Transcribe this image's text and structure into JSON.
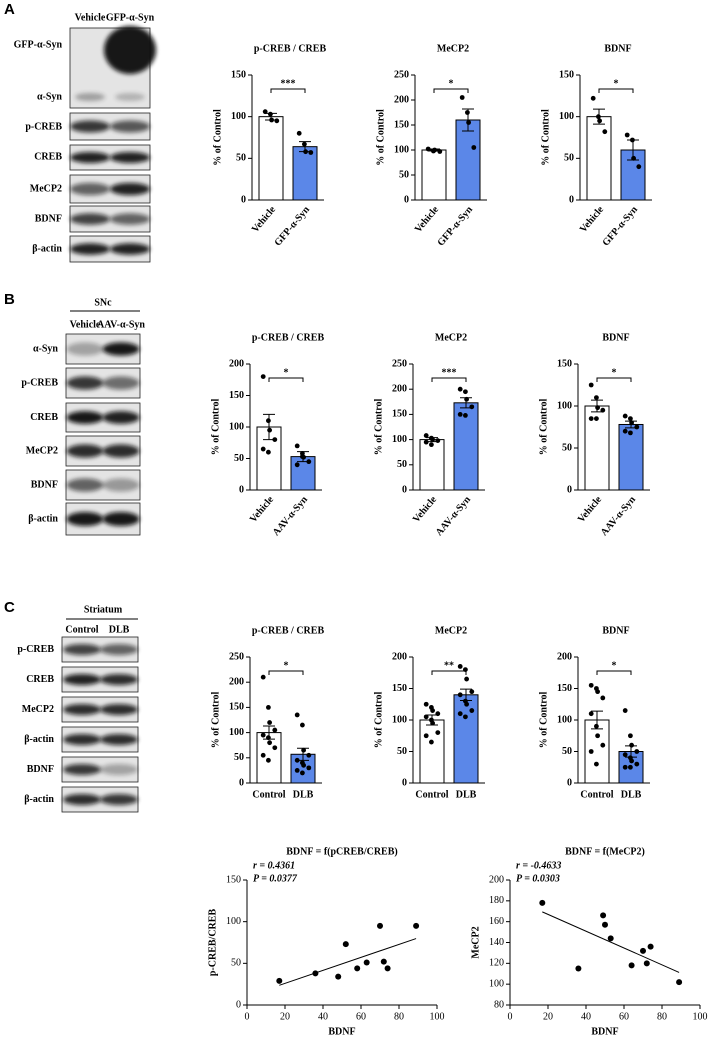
{
  "blots": [
    {
      "panel": "A",
      "columns": [
        "Vehicle",
        "GFP-α-Syn"
      ],
      "rows": [
        "GFP-α-Syn",
        "α-Syn",
        "p-CREB",
        "CREB",
        "MeCP2",
        "BDNF",
        "β-actin"
      ]
    },
    {
      "panel": "B",
      "header": "SNc",
      "columns": [
        "Vehicle",
        "AAV-α-Syn"
      ],
      "rows": [
        "α-Syn",
        "p-CREB",
        "CREB",
        "MeCP2",
        "BDNF",
        "β-actin"
      ]
    },
    {
      "panel": "C",
      "header": "Striatum",
      "columns": [
        "Control",
        "DLB"
      ],
      "rows": [
        "p-CREB",
        "CREB",
        "MeCP2",
        "β-actin",
        "BDNF",
        "β-actin"
      ]
    }
  ],
  "chart_data": [
    {
      "type": "bar",
      "title": "p-CREB / CREB",
      "ylabel": "% of Control",
      "categories": [
        "Vehicle",
        "GFP-α-Syn"
      ],
      "colors": [
        "#ffffff",
        "#5b87e8"
      ],
      "values": [
        100,
        64
      ],
      "errors": [
        4,
        6
      ],
      "points": [
        [
          106,
          103,
          96,
          95
        ],
        [
          80,
          67,
          58,
          57
        ]
      ],
      "significance": "***",
      "ylim": [
        0,
        150
      ],
      "yticks": [
        0,
        50,
        100,
        150
      ],
      "xtick_rotation": 50
    },
    {
      "type": "bar",
      "title": "MeCP2",
      "ylabel": "% of Control",
      "categories": [
        "Vehicle",
        "GFP-α-Syn"
      ],
      "colors": [
        "#ffffff",
        "#5b87e8"
      ],
      "values": [
        100,
        160
      ],
      "errors": [
        2,
        22
      ],
      "points": [
        [
          102,
          98,
          100,
          97
        ],
        [
          205,
          175,
          155,
          105
        ]
      ],
      "significance": "*",
      "ylim": [
        0,
        250
      ],
      "yticks": [
        0,
        50,
        100,
        150,
        200,
        250
      ],
      "xtick_rotation": 50
    },
    {
      "type": "bar",
      "title": "BDNF",
      "ylabel": "% of Control",
      "categories": [
        "Vehicle",
        "GFP-α-Syn"
      ],
      "colors": [
        "#ffffff",
        "#5b87e8"
      ],
      "values": [
        100,
        60
      ],
      "errors": [
        9,
        12
      ],
      "points": [
        [
          122,
          100,
          95,
          82
        ],
        [
          78,
          72,
          50,
          40
        ]
      ],
      "significance": "*",
      "ylim": [
        0,
        150
      ],
      "yticks": [
        0,
        50,
        100,
        150
      ],
      "xtick_rotation": 50
    },
    {
      "type": "bar",
      "title": "p-CREB / CREB",
      "ylabel": "% of Control",
      "categories": [
        "Vehicle",
        "AAV-α-Syn"
      ],
      "colors": [
        "#ffffff",
        "#5b87e8"
      ],
      "values": [
        100,
        53
      ],
      "errors": [
        20,
        8
      ],
      "points": [
        [
          180,
          110,
          95,
          80,
          65,
          60
        ],
        [
          70,
          58,
          52,
          45,
          40,
          53
        ]
      ],
      "significance": "*",
      "ylim": [
        0,
        200
      ],
      "yticks": [
        0,
        50,
        100,
        150,
        200
      ],
      "xtick_rotation": 50
    },
    {
      "type": "bar",
      "title": "MeCP2",
      "ylabel": "% of Control",
      "categories": [
        "Vehicle",
        "AAV-α-Syn"
      ],
      "colors": [
        "#ffffff",
        "#5b87e8"
      ],
      "values": [
        100,
        173
      ],
      "errors": [
        4,
        10
      ],
      "points": [
        [
          108,
          103,
          100,
          98,
          95,
          90
        ],
        [
          200,
          195,
          180,
          165,
          150,
          148
        ]
      ],
      "significance": "***",
      "ylim": [
        0,
        250
      ],
      "yticks": [
        0,
        50,
        100,
        150,
        200,
        250
      ],
      "xtick_rotation": 50
    },
    {
      "type": "bar",
      "title": "BDNF",
      "ylabel": "% of Control",
      "categories": [
        "Vehicle",
        "AAV-α-Syn"
      ],
      "colors": [
        "#ffffff",
        "#5b87e8"
      ],
      "values": [
        100,
        78
      ],
      "errors": [
        7,
        4
      ],
      "points": [
        [
          125,
          110,
          98,
          95,
          85,
          85
        ],
        [
          88,
          85,
          80,
          75,
          70,
          68
        ]
      ],
      "significance": "*",
      "ylim": [
        0,
        150
      ],
      "yticks": [
        0,
        50,
        100,
        150
      ],
      "xtick_rotation": 50
    },
    {
      "type": "bar",
      "title": "p-CREB / CREB",
      "ylabel": "% of Control",
      "categories": [
        "Control",
        "DLB"
      ],
      "colors": [
        "#ffffff",
        "#5b87e8"
      ],
      "values": [
        100,
        57
      ],
      "errors": [
        13,
        12
      ],
      "points": [
        [
          210,
          150,
          120,
          105,
          95,
          90,
          80,
          70,
          55,
          45
        ],
        [
          135,
          115,
          65,
          55,
          45,
          40,
          35,
          30,
          25,
          20
        ]
      ],
      "significance": "*",
      "ylim": [
        0,
        250
      ],
      "yticks": [
        0,
        50,
        100,
        150,
        200,
        250
      ],
      "xtick_rotation": 0
    },
    {
      "type": "bar",
      "title": "MeCP2",
      "ylabel": "% of Control",
      "categories": [
        "Control",
        "DLB"
      ],
      "colors": [
        "#ffffff",
        "#5b87e8"
      ],
      "values": [
        100,
        140
      ],
      "errors": [
        8,
        9
      ],
      "points": [
        [
          125,
          120,
          115,
          110,
          105,
          100,
          95,
          80,
          75,
          65
        ],
        [
          185,
          180,
          165,
          145,
          140,
          130,
          125,
          115,
          110,
          105
        ]
      ],
      "significance": "**",
      "ylim": [
        0,
        200
      ],
      "yticks": [
        0,
        50,
        100,
        150,
        200
      ],
      "xtick_rotation": 0
    },
    {
      "type": "bar",
      "title": "BDNF",
      "ylabel": "% of Control",
      "categories": [
        "Control",
        "DLB"
      ],
      "colors": [
        "#ffffff",
        "#5b87e8"
      ],
      "values": [
        100,
        50
      ],
      "errors": [
        14,
        9
      ],
      "points": [
        [
          155,
          150,
          145,
          135,
          110,
          90,
          75,
          60,
          50,
          30
        ],
        [
          115,
          75,
          60,
          50,
          45,
          40,
          35,
          30,
          25,
          25
        ]
      ],
      "significance": "*",
      "ylim": [
        0,
        200
      ],
      "yticks": [
        0,
        50,
        100,
        150,
        200
      ],
      "xtick_rotation": 0
    },
    {
      "type": "scatter",
      "title": "BDNF = f(pCREB/CREB)",
      "xlabel": "BDNF",
      "ylabel": "p-CREB/CREB",
      "stats": [
        "r = 0.4361",
        "P = 0.0377"
      ],
      "x": [
        17,
        36,
        48,
        52,
        58,
        63,
        70,
        72,
        74,
        89
      ],
      "y": [
        29,
        38,
        34,
        73,
        44,
        51,
        95,
        52,
        44,
        95
      ],
      "xlim": [
        0,
        100
      ],
      "xticks": [
        0,
        20,
        40,
        60,
        80,
        100
      ],
      "ylim": [
        0,
        150
      ],
      "yticks": [
        0,
        50,
        100,
        150
      ],
      "trendline": true
    },
    {
      "type": "scatter",
      "title": "BDNF = f(MeCP2)",
      "xlabel": "BDNF",
      "ylabel": "MeCP2",
      "stats": [
        "r = -0.4633",
        "P = 0.0303"
      ],
      "x": [
        17,
        36,
        49,
        50,
        53,
        64,
        70,
        72,
        74,
        89
      ],
      "y": [
        178,
        115,
        166,
        157,
        144,
        118,
        132,
        120,
        136,
        102
      ],
      "xlim": [
        0,
        100
      ],
      "xticks": [
        0,
        20,
        40,
        60,
        80,
        100
      ],
      "ylim": [
        80,
        200
      ],
      "yticks": [
        80,
        100,
        120,
        140,
        160,
        180,
        200
      ],
      "trendline": true
    }
  ]
}
